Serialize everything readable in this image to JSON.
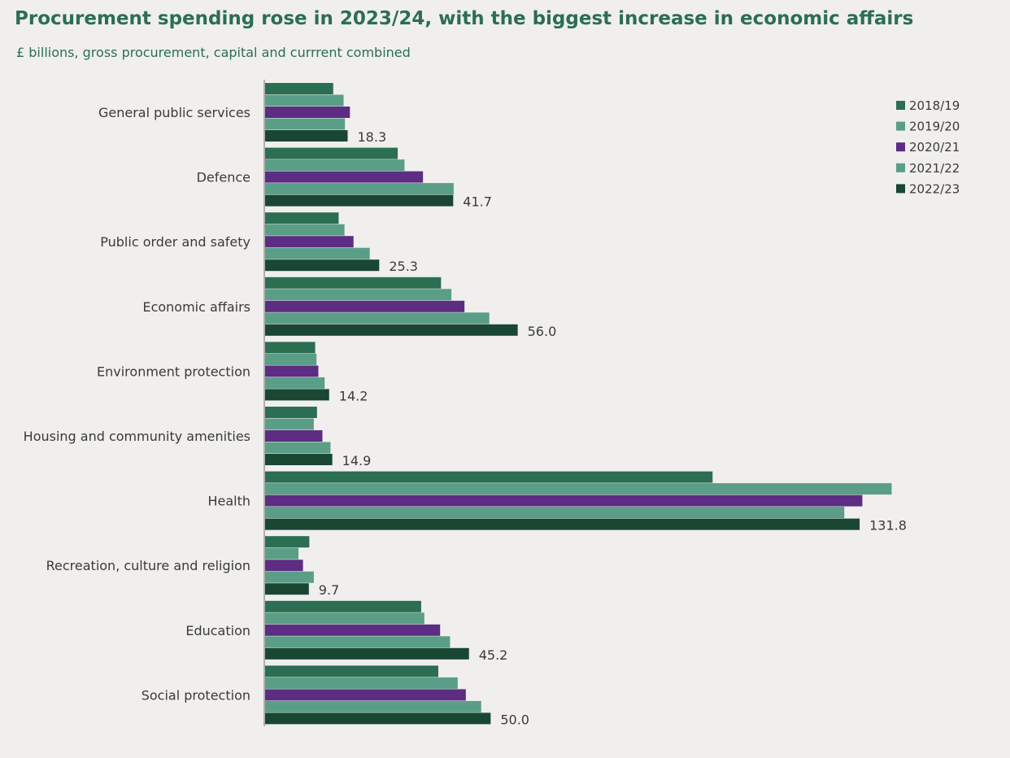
{
  "chart_data": {
    "type": "bar",
    "orientation": "horizontal",
    "title": "Procurement spending rose in 2023/24, with the biggest increase in economic affairs",
    "subtitle": "£ billions, gross procurement, capital and currrent combined",
    "xlabel": "",
    "ylabel": "",
    "xlim": [
      0,
      140
    ],
    "grid": false,
    "legend_position": "top-right",
    "categories": [
      "General public services",
      "Defence",
      "Public order and safety",
      "Economic affairs",
      "Environment protection",
      "Housing and community amenities",
      "Health",
      "Recreation, culture and religion",
      "Education",
      "Social protection"
    ],
    "series": [
      {
        "name": "2018/19",
        "color": "#2c6e52",
        "values": [
          15.1,
          29.4,
          16.3,
          39.0,
          11.1,
          11.5,
          99.2,
          9.8,
          34.6,
          38.4
        ]
      },
      {
        "name": "2019/20",
        "color": "#5a9e87",
        "values": [
          17.4,
          30.9,
          17.6,
          41.3,
          11.4,
          10.8,
          138.9,
          7.4,
          35.3,
          42.7
        ]
      },
      {
        "name": "2020/21",
        "color": "#5c2d82",
        "values": [
          18.8,
          35.0,
          19.6,
          44.2,
          11.8,
          12.7,
          132.4,
          8.4,
          38.8,
          44.5
        ]
      },
      {
        "name": "2021/22",
        "color": "#5a9e87",
        "values": [
          17.7,
          41.8,
          23.2,
          49.7,
          13.2,
          14.5,
          128.4,
          10.8,
          41.0,
          47.9
        ]
      },
      {
        "name": "2022/23",
        "color": "#1a4634",
        "values": [
          18.3,
          41.7,
          25.3,
          56.0,
          14.2,
          14.9,
          131.8,
          9.7,
          45.2,
          50.0
        ]
      }
    ],
    "data_labels_series": "2022/23",
    "data_labels": [
      "18.3",
      "41.7",
      "25.3",
      "56.0",
      "14.2",
      "14.9",
      "131.8",
      "9.7",
      "45.2",
      "50.0"
    ]
  }
}
